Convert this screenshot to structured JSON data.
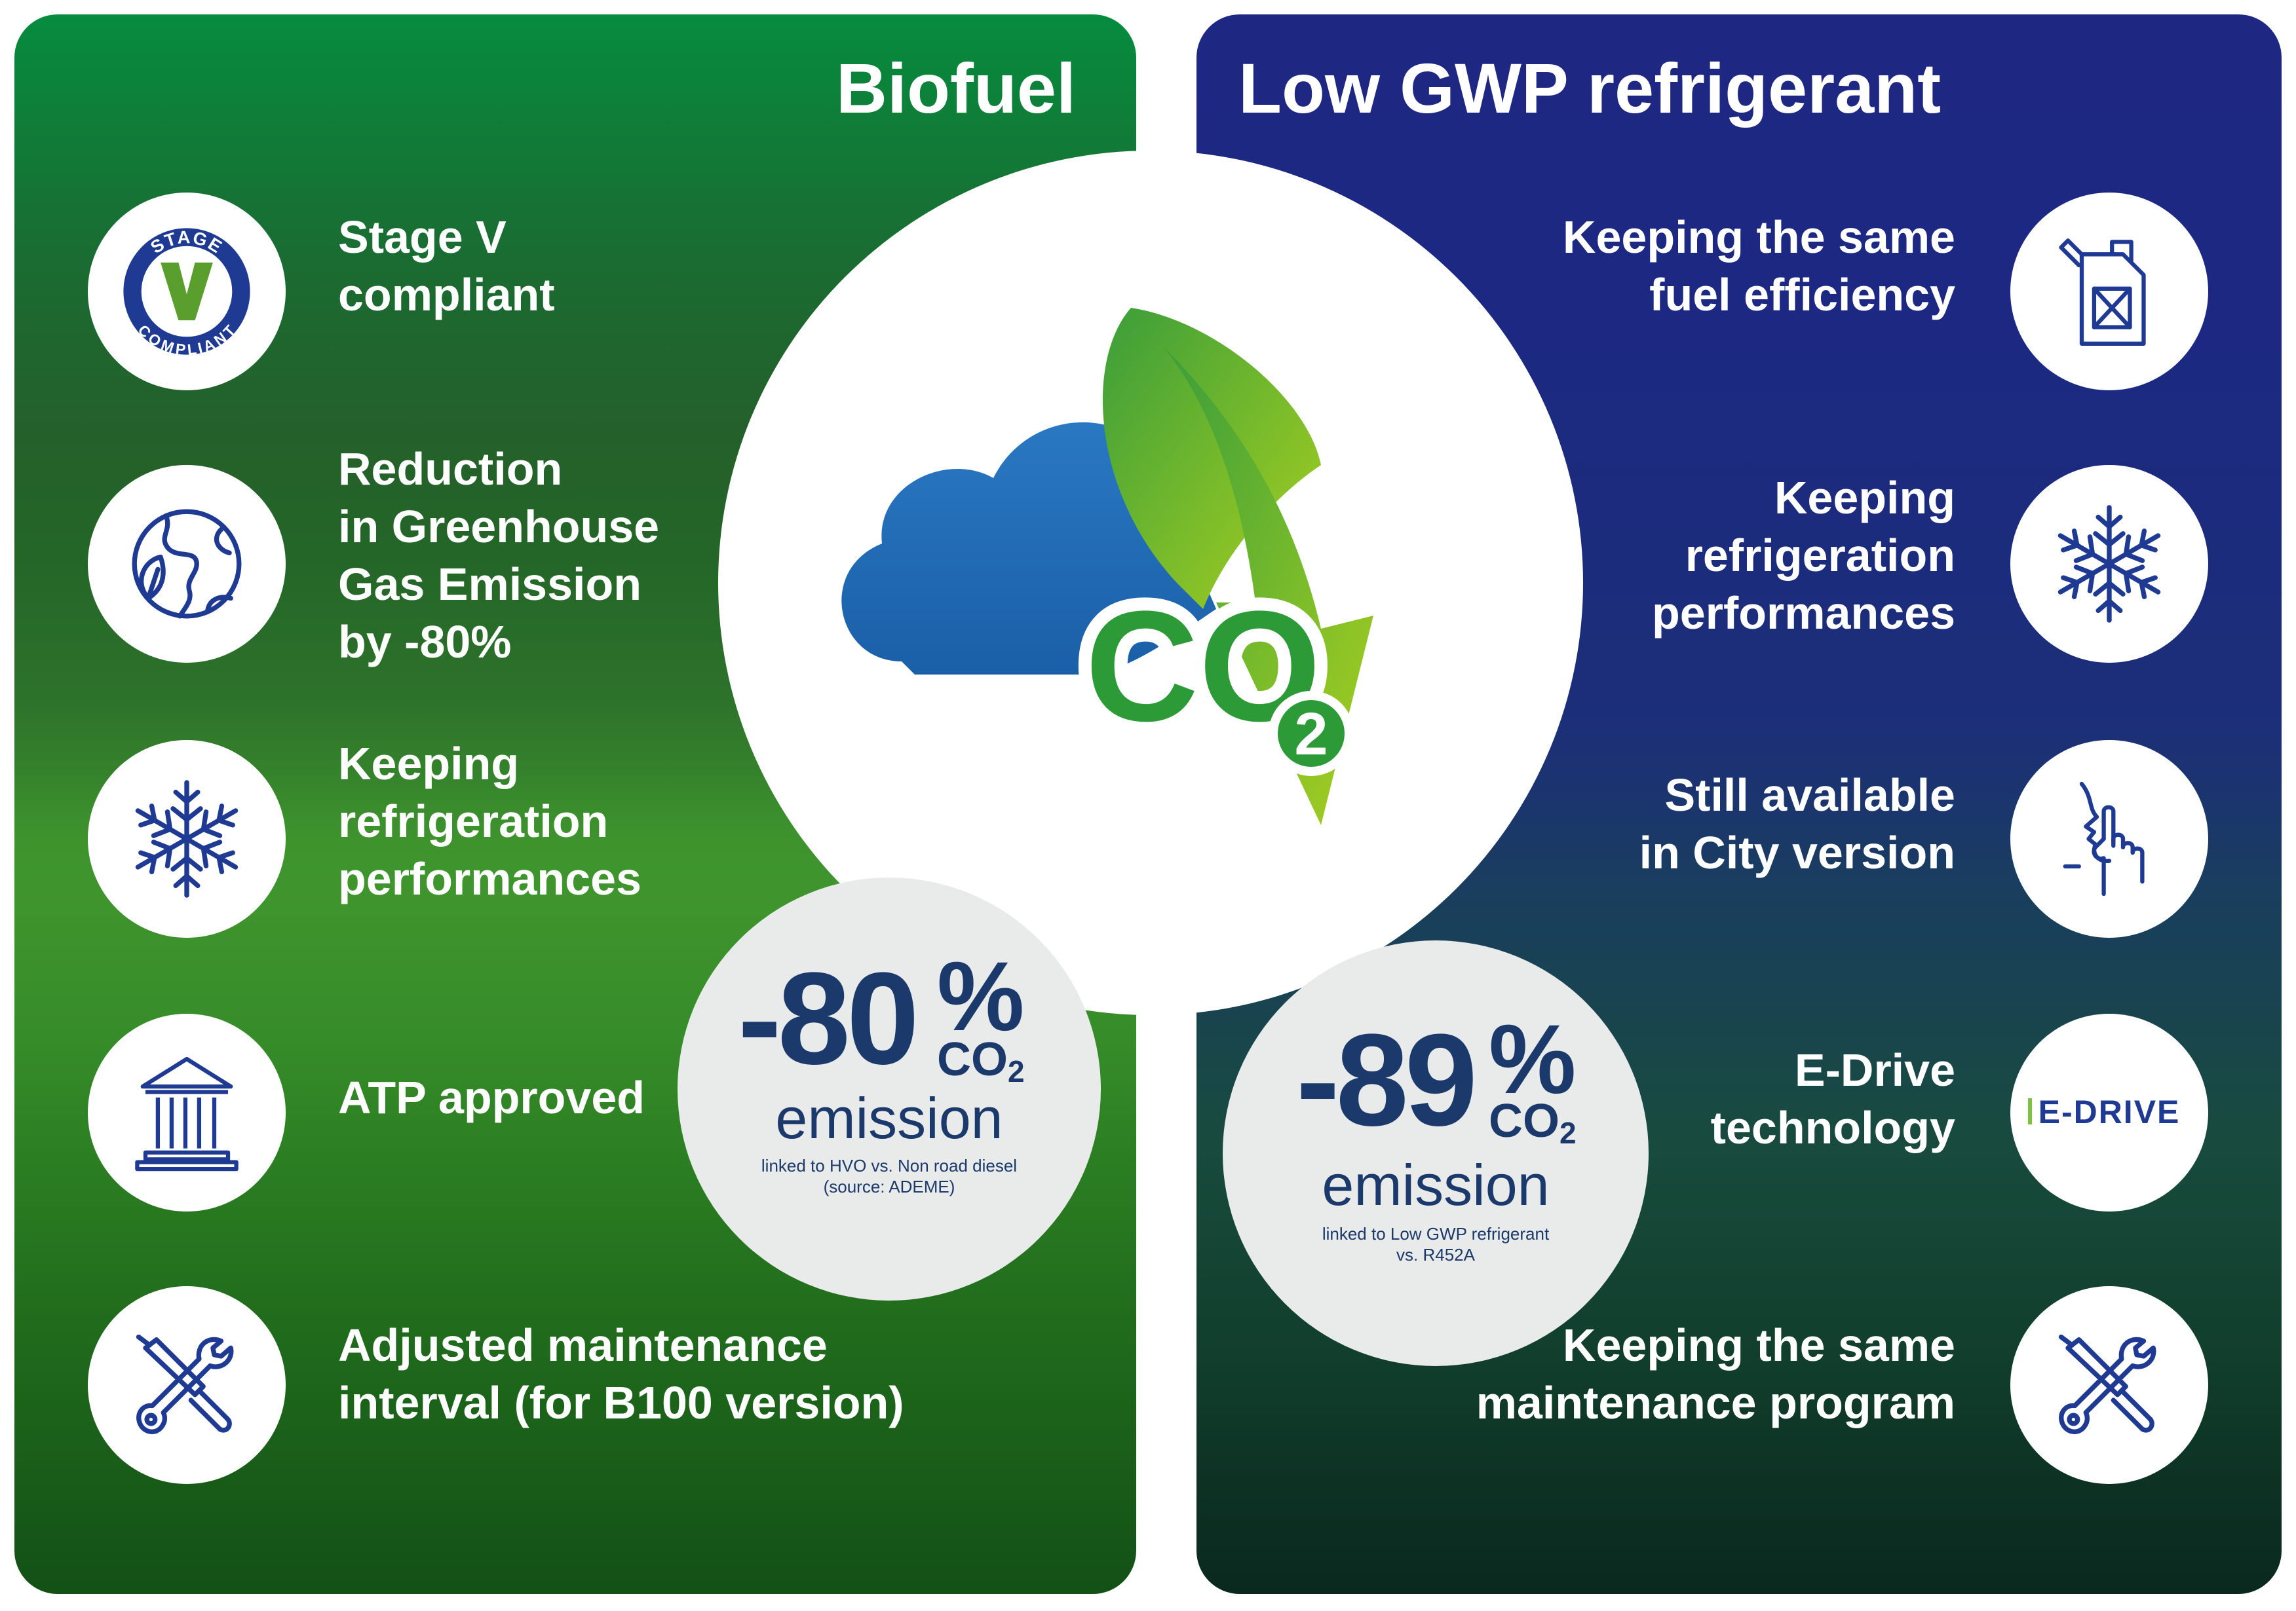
{
  "biofuel": {
    "title": "Biofuel",
    "stage_badge": {
      "top": "STAGE",
      "mark": "V",
      "bottom": "COMPLIANT"
    },
    "features": [
      {
        "icon": "stage-v-badge-icon",
        "text": "Stage V\ncompliant"
      },
      {
        "icon": "globe-leaf-icon",
        "text": "Reduction\nin Greenhouse\nGas Emission\nby -80%"
      },
      {
        "icon": "snowflake-icon",
        "text": "Keeping\nrefrigeration\nperformances"
      },
      {
        "icon": "building-columns-icon",
        "text": "ATP approved"
      },
      {
        "icon": "tools-icon",
        "text": "Adjusted maintenance\ninterval (for B100 version)"
      }
    ],
    "stat": {
      "value": "-80",
      "percent": "%",
      "co": "CO",
      "sub": "2",
      "label": "emission",
      "note_line1": "linked to HVO vs. Non road diesel",
      "note_line2": "(source: ADEME)"
    }
  },
  "low_gwp": {
    "title": "Low GWP refrigerant",
    "edrive_logo": "E-DRIVE",
    "features": [
      {
        "icon": "fuel-can-icon",
        "text": "Keeping the same\nfuel efficiency"
      },
      {
        "icon": "snowflake-icon",
        "text": "Keeping\nrefrigeration\nperformances"
      },
      {
        "icon": "quiet-gesture-icon",
        "text": "Still available\nin City version"
      },
      {
        "icon": "edrive-logo-icon",
        "text": "E-Drive\ntechnology"
      },
      {
        "icon": "tools-icon",
        "text": "Keeping the same\nmaintenance program"
      }
    ],
    "stat": {
      "value": "-89",
      "percent": "%",
      "co": "CO",
      "sub": "2",
      "label": "emission",
      "note_line1": "linked to Low GWP refrigerant",
      "note_line2": "vs. R452A"
    }
  },
  "center": {
    "icon": "co2-cloud-leaf-icon",
    "co": "CO",
    "sub": "2"
  },
  "colors": {
    "icon_blue": "#1f3a93",
    "stat_text": "#1b3a6b",
    "green_panel": "#0a8a3e",
    "blue_panel": "#1f2b85"
  }
}
